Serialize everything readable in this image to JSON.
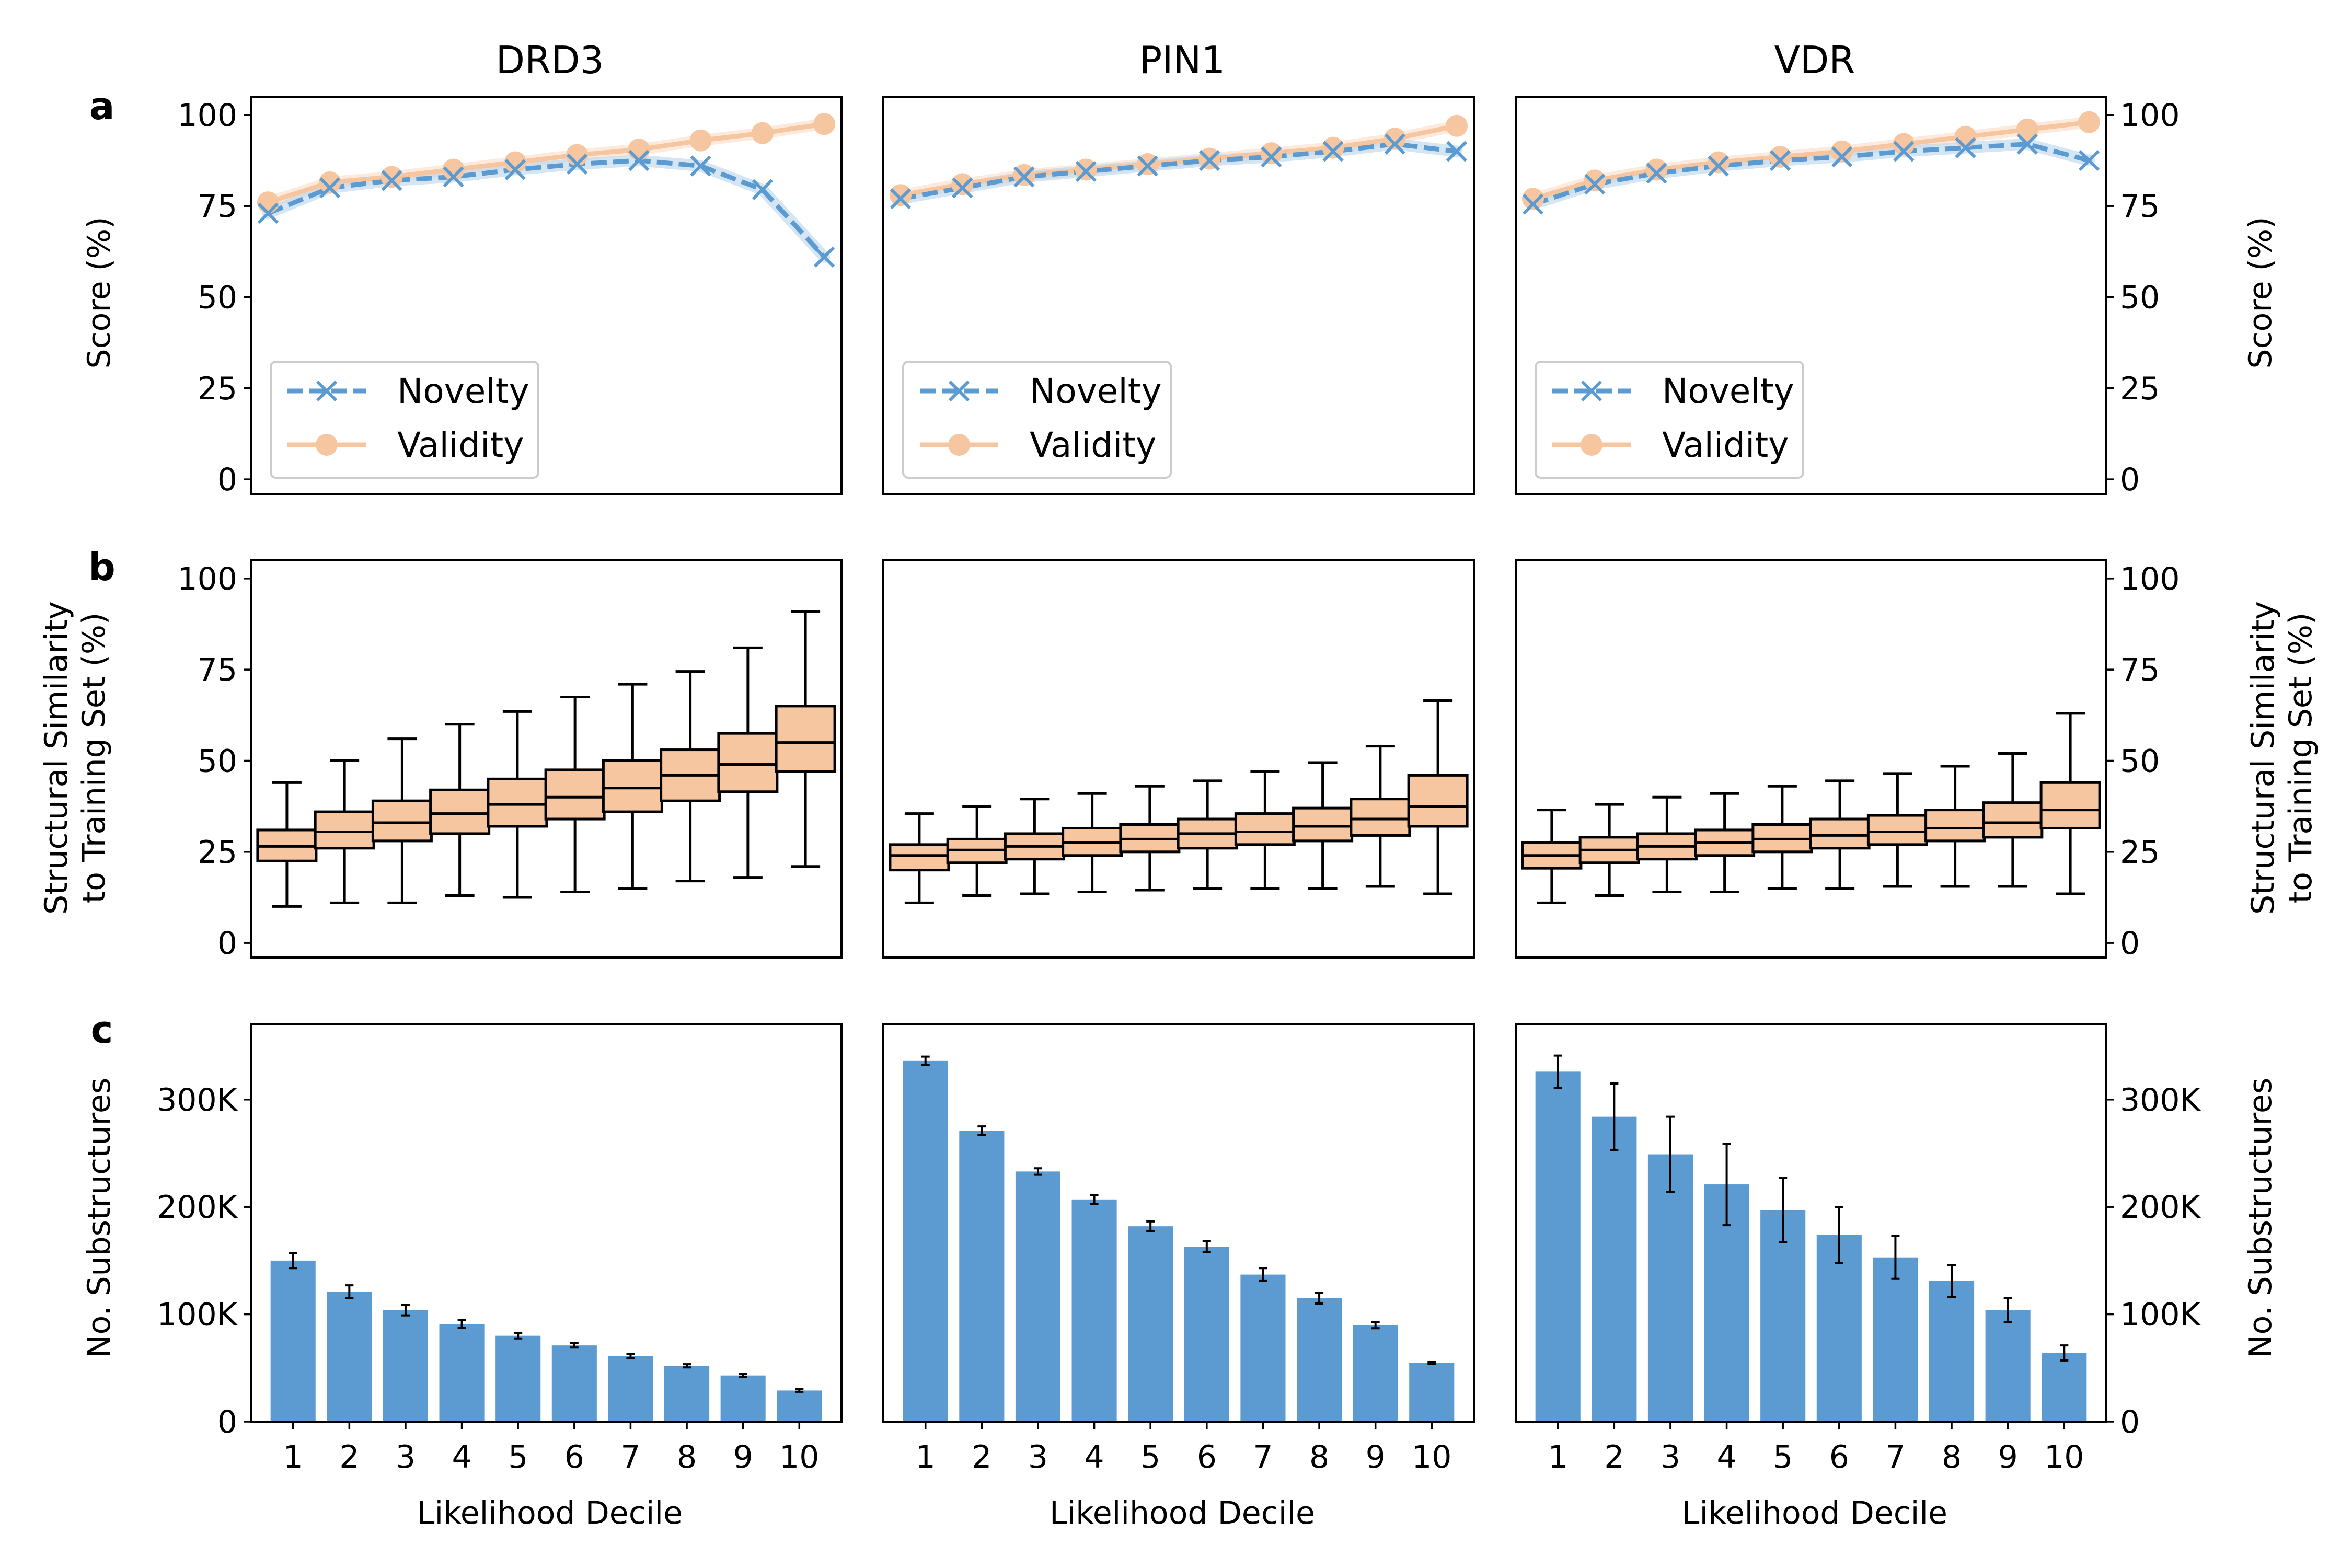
{
  "figure": {
    "panel_letters": [
      "a",
      "b",
      "c"
    ],
    "colors": {
      "novelty": "#5b9bd1",
      "novelty_light": "#b7d3ec",
      "validity": "#f6c6a0",
      "validity_light": "#fbdcc6",
      "bar": "#5b9bd1",
      "box_fill": "#f6c6a0"
    },
    "legend": {
      "novelty": "Novelty",
      "validity": "Validity"
    },
    "row_axis_titles": {
      "a": [
        "Score (%)"
      ],
      "b": [
        "Structural Similarity",
        "to Training Set (%)"
      ],
      "c": [
        "No. Substructures"
      ]
    },
    "x_axis_title": "Likelihood Decile"
  },
  "chart_data": [
    {
      "type": "line",
      "title": "DRD3",
      "ylabel": "Score (%)",
      "ylim": [
        -4,
        105
      ],
      "yticks": [
        0,
        25,
        50,
        75,
        100
      ],
      "x": [
        1,
        2,
        3,
        4,
        5,
        6,
        7,
        8,
        9,
        10
      ],
      "series": [
        {
          "name": "Novelty",
          "marker": "x",
          "values": [
            73,
            80,
            82,
            83,
            85,
            86.5,
            87.5,
            86,
            79.5,
            61
          ]
        },
        {
          "name": "Validity",
          "marker": "o",
          "values": [
            76,
            81.5,
            83,
            85,
            87,
            89,
            90.5,
            93,
            95,
            97.5
          ]
        }
      ],
      "legend_position": "lower-left",
      "grid": false
    },
    {
      "type": "line",
      "title": "PIN1",
      "ylabel": "",
      "ylim": [
        -4,
        105
      ],
      "yticks": [
        0,
        25,
        50,
        75,
        100
      ],
      "x": [
        1,
        2,
        3,
        4,
        5,
        6,
        7,
        8,
        9,
        10
      ],
      "series": [
        {
          "name": "Novelty",
          "marker": "x",
          "values": [
            77,
            80,
            83,
            84.5,
            86,
            87.5,
            88.5,
            90,
            92,
            90
          ]
        },
        {
          "name": "Validity",
          "marker": "o",
          "values": [
            78,
            81,
            83.5,
            85,
            86.5,
            88,
            89.5,
            91,
            93.5,
            97
          ]
        }
      ],
      "legend_position": "lower-left",
      "grid": false
    },
    {
      "type": "line",
      "title": "VDR",
      "ylabel": "Score (%)",
      "ylim": [
        -4,
        105
      ],
      "yticks": [
        0,
        25,
        50,
        75,
        100
      ],
      "x": [
        1,
        2,
        3,
        4,
        5,
        6,
        7,
        8,
        9,
        10
      ],
      "series": [
        {
          "name": "Novelty",
          "marker": "x",
          "values": [
            75.5,
            81,
            84,
            86,
            87.5,
            88.5,
            90,
            91,
            92,
            87.5
          ]
        },
        {
          "name": "Validity",
          "marker": "o",
          "values": [
            77,
            82,
            85,
            87,
            88.5,
            90,
            92,
            94,
            96,
            98
          ]
        }
      ],
      "legend_position": "lower-left",
      "grid": false
    },
    {
      "type": "box",
      "title": "",
      "ylabel": "Structural Similarity to Training Set (%)",
      "ylim": [
        -4,
        105
      ],
      "yticks": [
        0,
        25,
        50,
        75,
        100
      ],
      "categories": [
        "1",
        "2",
        "3",
        "4",
        "5",
        "6",
        "7",
        "8",
        "9",
        "10"
      ],
      "boxes": [
        {
          "min": 10,
          "q1": 22.5,
          "median": 26.5,
          "q3": 31,
          "max": 44
        },
        {
          "min": 11,
          "q1": 26,
          "median": 30.5,
          "q3": 36,
          "max": 50
        },
        {
          "min": 11,
          "q1": 28,
          "median": 33,
          "q3": 39,
          "max": 56
        },
        {
          "min": 13,
          "q1": 30,
          "median": 35.5,
          "q3": 42,
          "max": 60
        },
        {
          "min": 12.5,
          "q1": 32,
          "median": 38,
          "q3": 45,
          "max": 63.5
        },
        {
          "min": 14,
          "q1": 34,
          "median": 40,
          "q3": 47.5,
          "max": 67.5
        },
        {
          "min": 15,
          "q1": 36,
          "median": 42.5,
          "q3": 50,
          "max": 71
        },
        {
          "min": 17,
          "q1": 39,
          "median": 46,
          "q3": 53,
          "max": 74.5
        },
        {
          "min": 18,
          "q1": 41.5,
          "median": 49,
          "q3": 57.5,
          "max": 81
        },
        {
          "min": 21,
          "q1": 47,
          "median": 55,
          "q3": 65,
          "max": 91
        }
      ]
    },
    {
      "type": "box",
      "title": "",
      "ylabel": "",
      "ylim": [
        -4,
        105
      ],
      "yticks": [
        0,
        25,
        50,
        75,
        100
      ],
      "categories": [
        "1",
        "2",
        "3",
        "4",
        "5",
        "6",
        "7",
        "8",
        "9",
        "10"
      ],
      "boxes": [
        {
          "min": 11,
          "q1": 20,
          "median": 24,
          "q3": 27,
          "max": 35.5
        },
        {
          "min": 13,
          "q1": 22,
          "median": 25.5,
          "q3": 28.5,
          "max": 37.5
        },
        {
          "min": 13.5,
          "q1": 23,
          "median": 26.5,
          "q3": 30,
          "max": 39.5
        },
        {
          "min": 14,
          "q1": 24,
          "median": 27.5,
          "q3": 31.5,
          "max": 41
        },
        {
          "min": 14.5,
          "q1": 25,
          "median": 28.5,
          "q3": 32.5,
          "max": 43
        },
        {
          "min": 15,
          "q1": 26,
          "median": 30,
          "q3": 34,
          "max": 44.5
        },
        {
          "min": 15,
          "q1": 27,
          "median": 30.5,
          "q3": 35.5,
          "max": 47
        },
        {
          "min": 15,
          "q1": 28,
          "median": 32,
          "q3": 37,
          "max": 49.5
        },
        {
          "min": 15.5,
          "q1": 29.5,
          "median": 34,
          "q3": 39.5,
          "max": 54
        },
        {
          "min": 13.5,
          "q1": 32,
          "median": 37.5,
          "q3": 46,
          "max": 66.5
        }
      ]
    },
    {
      "type": "box",
      "title": "",
      "ylabel": "Structural Similarity to Training Set (%)",
      "ylim": [
        -4,
        105
      ],
      "yticks": [
        0,
        25,
        50,
        75,
        100
      ],
      "categories": [
        "1",
        "2",
        "3",
        "4",
        "5",
        "6",
        "7",
        "8",
        "9",
        "10"
      ],
      "boxes": [
        {
          "min": 11,
          "q1": 20.5,
          "median": 24,
          "q3": 27.5,
          "max": 36.5
        },
        {
          "min": 13,
          "q1": 22,
          "median": 25.5,
          "q3": 29,
          "max": 38
        },
        {
          "min": 14,
          "q1": 23,
          "median": 26.5,
          "q3": 30,
          "max": 40
        },
        {
          "min": 14,
          "q1": 24,
          "median": 27.5,
          "q3": 31,
          "max": 41
        },
        {
          "min": 15,
          "q1": 25,
          "median": 28.5,
          "q3": 32.5,
          "max": 43
        },
        {
          "min": 15,
          "q1": 26,
          "median": 29.5,
          "q3": 34,
          "max": 44.5
        },
        {
          "min": 15.5,
          "q1": 27,
          "median": 30.5,
          "q3": 35,
          "max": 46.5
        },
        {
          "min": 15.5,
          "q1": 28,
          "median": 31.5,
          "q3": 36.5,
          "max": 48.5
        },
        {
          "min": 15.5,
          "q1": 29,
          "median": 33,
          "q3": 38.5,
          "max": 52
        },
        {
          "min": 13.5,
          "q1": 31.5,
          "median": 36.5,
          "q3": 44,
          "max": 63
        }
      ]
    },
    {
      "type": "bar",
      "title": "",
      "xlabel": "Likelihood Decile",
      "ylabel": "No. Substructures",
      "ylim": [
        0,
        370000
      ],
      "yticks": [
        0,
        100000,
        200000,
        300000
      ],
      "ytick_labels": [
        "0",
        "100K",
        "200K",
        "300K"
      ],
      "categories": [
        "1",
        "2",
        "3",
        "4",
        "5",
        "6",
        "7",
        "8",
        "9",
        "10"
      ],
      "values": [
        150000,
        121000,
        104000,
        91000,
        80000,
        71000,
        61000,
        52000,
        43000,
        29000
      ],
      "errors": [
        7000,
        6000,
        5000,
        3500,
        2500,
        2000,
        1800,
        1500,
        1500,
        1200
      ]
    },
    {
      "type": "bar",
      "title": "",
      "xlabel": "Likelihood Decile",
      "ylabel": "",
      "ylim": [
        0,
        370000
      ],
      "yticks": [
        0,
        100000,
        200000,
        300000
      ],
      "ytick_labels": [
        "0",
        "100K",
        "200K",
        "300K"
      ],
      "categories": [
        "1",
        "2",
        "3",
        "4",
        "5",
        "6",
        "7",
        "8",
        "9",
        "10"
      ],
      "values": [
        336000,
        271000,
        233000,
        207000,
        182000,
        163000,
        137000,
        115000,
        90000,
        55000
      ],
      "errors": [
        4000,
        4000,
        3000,
        4000,
        4500,
        5000,
        6000,
        5000,
        3000,
        1000
      ]
    },
    {
      "type": "bar",
      "title": "",
      "xlabel": "Likelihood Decile",
      "ylabel": "No. Substructures",
      "ylim": [
        0,
        370000
      ],
      "yticks": [
        0,
        100000,
        200000,
        300000
      ],
      "ytick_labels": [
        "0",
        "100K",
        "200K",
        "300K"
      ],
      "categories": [
        "1",
        "2",
        "3",
        "4",
        "5",
        "6",
        "7",
        "8",
        "9",
        "10"
      ],
      "values": [
        326000,
        284000,
        249000,
        221000,
        197000,
        174000,
        153000,
        131000,
        104000,
        64000
      ],
      "errors": [
        15000,
        31000,
        35000,
        38000,
        30000,
        26000,
        20000,
        15000,
        11000,
        7000
      ]
    }
  ]
}
